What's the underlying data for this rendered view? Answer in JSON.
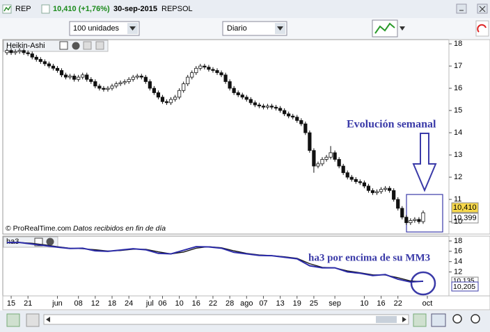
{
  "header": {
    "symbol": "REP",
    "quote": "10,410 (+1,76%)",
    "date": "30-sep-2015",
    "name": "REPSOL"
  },
  "toolbar": {
    "quantity": "100 unidades",
    "period": "Diario"
  },
  "chart_data": [
    {
      "type": "candlestick",
      "title": "Heikin-Ashi",
      "credit": "© ProRealTime.com",
      "note": "Datos recibidos en fin de día",
      "annotation": "Evolución semanal",
      "up_color": "#ffffff",
      "down_color": "#111111",
      "open": [
        17.6,
        17.7,
        17.6,
        17.65,
        17.7,
        17.6,
        17.55,
        17.4,
        17.3,
        17.2,
        17.1,
        17.0,
        16.9,
        16.8,
        16.6,
        16.5,
        16.55,
        16.4,
        16.5,
        16.6,
        16.4,
        16.3,
        16.1,
        16.0,
        15.95,
        16.0,
        16.1,
        16.2,
        16.25,
        16.3,
        16.4,
        16.5,
        16.55,
        16.5,
        16.3,
        16.0,
        15.8,
        15.6,
        15.4,
        15.35,
        15.5,
        15.6,
        15.9,
        16.2,
        16.5,
        16.7,
        16.9,
        17.0,
        16.95,
        16.85,
        16.8,
        16.7,
        16.6,
        16.3,
        16.0,
        15.8,
        15.7,
        15.6,
        15.5,
        15.35,
        15.25,
        15.2,
        15.15,
        15.2,
        15.15,
        15.1,
        15.0,
        14.85,
        14.75,
        14.7,
        14.55,
        14.4,
        14.0,
        13.2,
        12.5,
        12.6,
        12.8,
        12.9,
        13.1,
        12.8,
        12.5,
        12.2,
        12.0,
        11.9,
        11.8,
        11.75,
        11.6,
        11.4,
        11.3,
        11.35,
        11.45,
        11.5,
        11.4,
        11.0,
        10.6,
        10.2,
        9.95,
        10.05,
        10.1,
        10.0
      ],
      "high": [
        17.8,
        17.8,
        17.75,
        17.8,
        17.8,
        17.7,
        17.65,
        17.5,
        17.4,
        17.3,
        17.2,
        17.1,
        17.0,
        16.9,
        16.7,
        16.65,
        16.65,
        16.6,
        16.7,
        16.7,
        16.5,
        16.4,
        16.2,
        16.1,
        16.1,
        16.2,
        16.3,
        16.35,
        16.4,
        16.5,
        16.6,
        16.65,
        16.65,
        16.6,
        16.4,
        16.1,
        15.9,
        15.7,
        15.5,
        15.6,
        15.7,
        16.0,
        16.3,
        16.6,
        16.8,
        17.0,
        17.1,
        17.1,
        17.05,
        16.95,
        16.9,
        16.8,
        16.7,
        16.4,
        16.1,
        15.9,
        15.8,
        15.7,
        15.6,
        15.45,
        15.35,
        15.3,
        15.3,
        15.3,
        15.25,
        15.2,
        15.1,
        14.95,
        14.85,
        14.8,
        14.65,
        14.5,
        14.1,
        13.3,
        12.7,
        12.9,
        13.0,
        13.4,
        13.2,
        12.9,
        12.6,
        12.3,
        12.1,
        12.0,
        11.9,
        11.85,
        11.7,
        11.5,
        11.45,
        11.55,
        11.6,
        11.6,
        11.5,
        11.1,
        10.7,
        10.3,
        10.15,
        10.2,
        10.2,
        10.5
      ],
      "low": [
        17.5,
        17.5,
        17.5,
        17.55,
        17.5,
        17.45,
        17.3,
        17.2,
        17.1,
        17.0,
        16.9,
        16.8,
        16.7,
        16.5,
        16.4,
        16.4,
        16.3,
        16.3,
        16.4,
        16.3,
        16.2,
        16.0,
        15.9,
        15.85,
        15.85,
        15.9,
        16.0,
        16.1,
        16.15,
        16.2,
        16.3,
        16.4,
        16.4,
        16.2,
        15.9,
        15.7,
        15.5,
        15.3,
        15.25,
        15.25,
        15.4,
        15.5,
        15.8,
        16.1,
        16.4,
        16.6,
        16.8,
        16.85,
        16.75,
        16.7,
        16.6,
        16.5,
        16.2,
        15.9,
        15.7,
        15.6,
        15.5,
        15.4,
        15.25,
        15.15,
        15.1,
        15.05,
        15.05,
        15.05,
        15.0,
        14.9,
        14.75,
        14.65,
        14.6,
        14.45,
        14.3,
        13.9,
        13.1,
        12.2,
        12.4,
        12.5,
        12.7,
        12.8,
        12.7,
        12.4,
        12.1,
        11.9,
        11.8,
        11.7,
        11.65,
        11.5,
        11.3,
        11.2,
        11.2,
        11.25,
        11.35,
        11.3,
        10.9,
        10.5,
        10.1,
        9.85,
        9.85,
        9.95,
        9.9,
        9.9
      ],
      "close": [
        17.7,
        17.6,
        17.65,
        17.7,
        17.6,
        17.55,
        17.4,
        17.3,
        17.2,
        17.1,
        17.0,
        16.9,
        16.8,
        16.6,
        16.5,
        16.55,
        16.4,
        16.5,
        16.6,
        16.4,
        16.3,
        16.1,
        16.0,
        15.95,
        16.0,
        16.1,
        16.2,
        16.25,
        16.3,
        16.4,
        16.5,
        16.55,
        16.5,
        16.3,
        16.0,
        15.8,
        15.6,
        15.4,
        15.35,
        15.5,
        15.6,
        15.9,
        16.2,
        16.5,
        16.7,
        16.9,
        17.0,
        16.95,
        16.85,
        16.8,
        16.7,
        16.6,
        16.3,
        16.0,
        15.8,
        15.7,
        15.6,
        15.5,
        15.35,
        15.25,
        15.2,
        15.15,
        15.2,
        15.15,
        15.1,
        15.0,
        14.85,
        14.75,
        14.7,
        14.55,
        14.4,
        14.0,
        13.2,
        12.5,
        12.6,
        12.8,
        12.9,
        13.1,
        12.8,
        12.5,
        12.2,
        12.0,
        11.9,
        11.8,
        11.75,
        11.6,
        11.4,
        11.3,
        11.35,
        11.45,
        11.5,
        11.4,
        11.0,
        10.6,
        10.2,
        9.95,
        10.05,
        10.1,
        10.0,
        10.4
      ],
      "ylim": [
        9.44,
        18.19
      ],
      "yticks": [
        10,
        11,
        12,
        13,
        14,
        15,
        16,
        17,
        18
      ],
      "price_labels": [
        "10,410",
        "10,399"
      ],
      "xticks": [
        {
          "value": 1,
          "label": "15"
        },
        {
          "value": 5,
          "label": "21"
        },
        {
          "value": 12,
          "label": "jun"
        },
        {
          "value": 17,
          "label": "08"
        },
        {
          "value": 21,
          "label": "12"
        },
        {
          "value": 25,
          "label": "18"
        },
        {
          "value": 29,
          "label": "24"
        },
        {
          "value": 34,
          "label": "jul"
        },
        {
          "value": 37,
          "label": "06"
        },
        {
          "value": 41,
          "label": "10"
        },
        {
          "value": 45,
          "label": "16"
        },
        {
          "value": 49,
          "label": "22"
        },
        {
          "value": 53,
          "label": "28"
        },
        {
          "value": 57,
          "label": "ago"
        },
        {
          "value": 61,
          "label": "07"
        },
        {
          "value": 65,
          "label": "13"
        },
        {
          "value": 69,
          "label": "19"
        },
        {
          "value": 73,
          "label": "25"
        },
        {
          "value": 78,
          "label": "sep"
        },
        {
          "value": 85,
          "label": "10"
        },
        {
          "value": 89,
          "label": "16"
        },
        {
          "value": 93,
          "label": "22"
        },
        {
          "value": 100,
          "label": "oct"
        }
      ]
    },
    {
      "type": "line",
      "title": "ha3",
      "annotation": "ha3 por encima de su MM3",
      "x": [
        0,
        3,
        6,
        9,
        12,
        15,
        18,
        21,
        24,
        27,
        30,
        33,
        36,
        39,
        42,
        45,
        48,
        51,
        54,
        57,
        60,
        63,
        66,
        69,
        72,
        75,
        78,
        81,
        84,
        87,
        90,
        93,
        96,
        99
      ],
      "series": [
        {
          "name": "ha3",
          "color": "#2b2ba8",
          "values": [
            17.7,
            17.7,
            17.4,
            17.1,
            16.8,
            16.55,
            16.6,
            16.1,
            16.0,
            16.25,
            16.5,
            16.3,
            15.6,
            15.5,
            16.2,
            16.9,
            16.85,
            16.6,
            15.8,
            15.5,
            15.2,
            15.15,
            14.85,
            14.55,
            13.2,
            12.8,
            12.8,
            12.0,
            11.75,
            11.3,
            11.5,
            10.6,
            10.05,
            10.205
          ]
        },
        {
          "name": "MM3",
          "color": "#111111",
          "values": [
            17.65,
            17.7,
            17.55,
            17.25,
            16.9,
            16.6,
            16.5,
            16.3,
            16.05,
            16.15,
            16.4,
            16.4,
            15.9,
            15.5,
            15.85,
            16.6,
            16.9,
            16.7,
            16.1,
            15.6,
            15.3,
            15.17,
            14.95,
            14.65,
            13.6,
            12.9,
            12.8,
            12.2,
            11.85,
            11.45,
            11.4,
            10.9,
            10.25,
            10.135
          ]
        }
      ],
      "ylim": [
        7.5,
        18.8
      ],
      "yticks": [
        12,
        14,
        16,
        18
      ],
      "price_labels": [
        "10,135",
        "10,205"
      ]
    }
  ]
}
